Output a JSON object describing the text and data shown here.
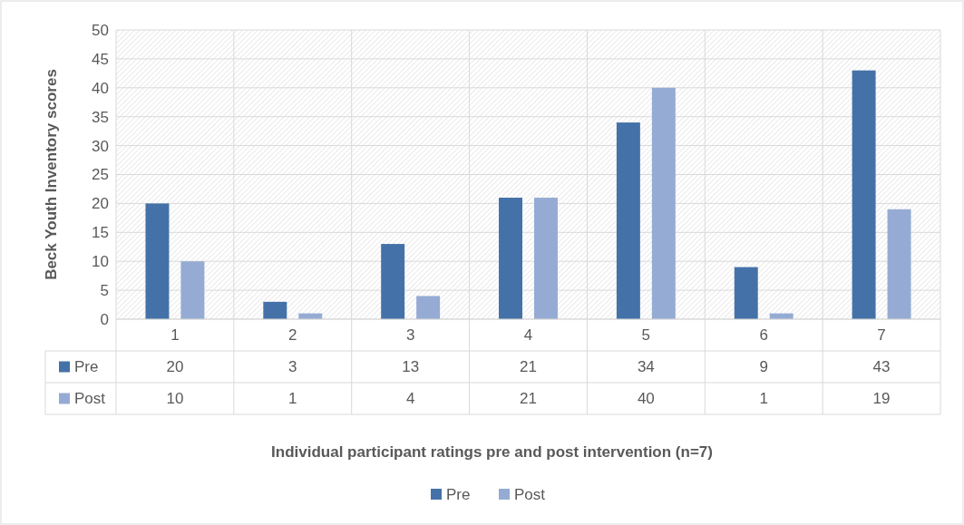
{
  "chart_data": {
    "type": "bar",
    "ylabel": "Beck Youth Inventory scores",
    "annotations": [
      "Individual participant ratings pre and post intervention (n=7)"
    ],
    "categories": [
      "1",
      "2",
      "3",
      "4",
      "5",
      "6",
      "7"
    ],
    "series": [
      {
        "name": "Pre",
        "color": "#4472a8",
        "values": [
          20,
          3,
          13,
          21,
          34,
          9,
          43
        ]
      },
      {
        "name": "Post",
        "color": "#95abd3",
        "values": [
          10,
          1,
          4,
          21,
          40,
          1,
          19
        ]
      }
    ],
    "ylim": [
      0,
      50
    ],
    "yticks": [
      0,
      5,
      10,
      15,
      20,
      25,
      30,
      35,
      40,
      45,
      50
    ],
    "grid": true,
    "legend": "bottom",
    "data_labels": true
  }
}
